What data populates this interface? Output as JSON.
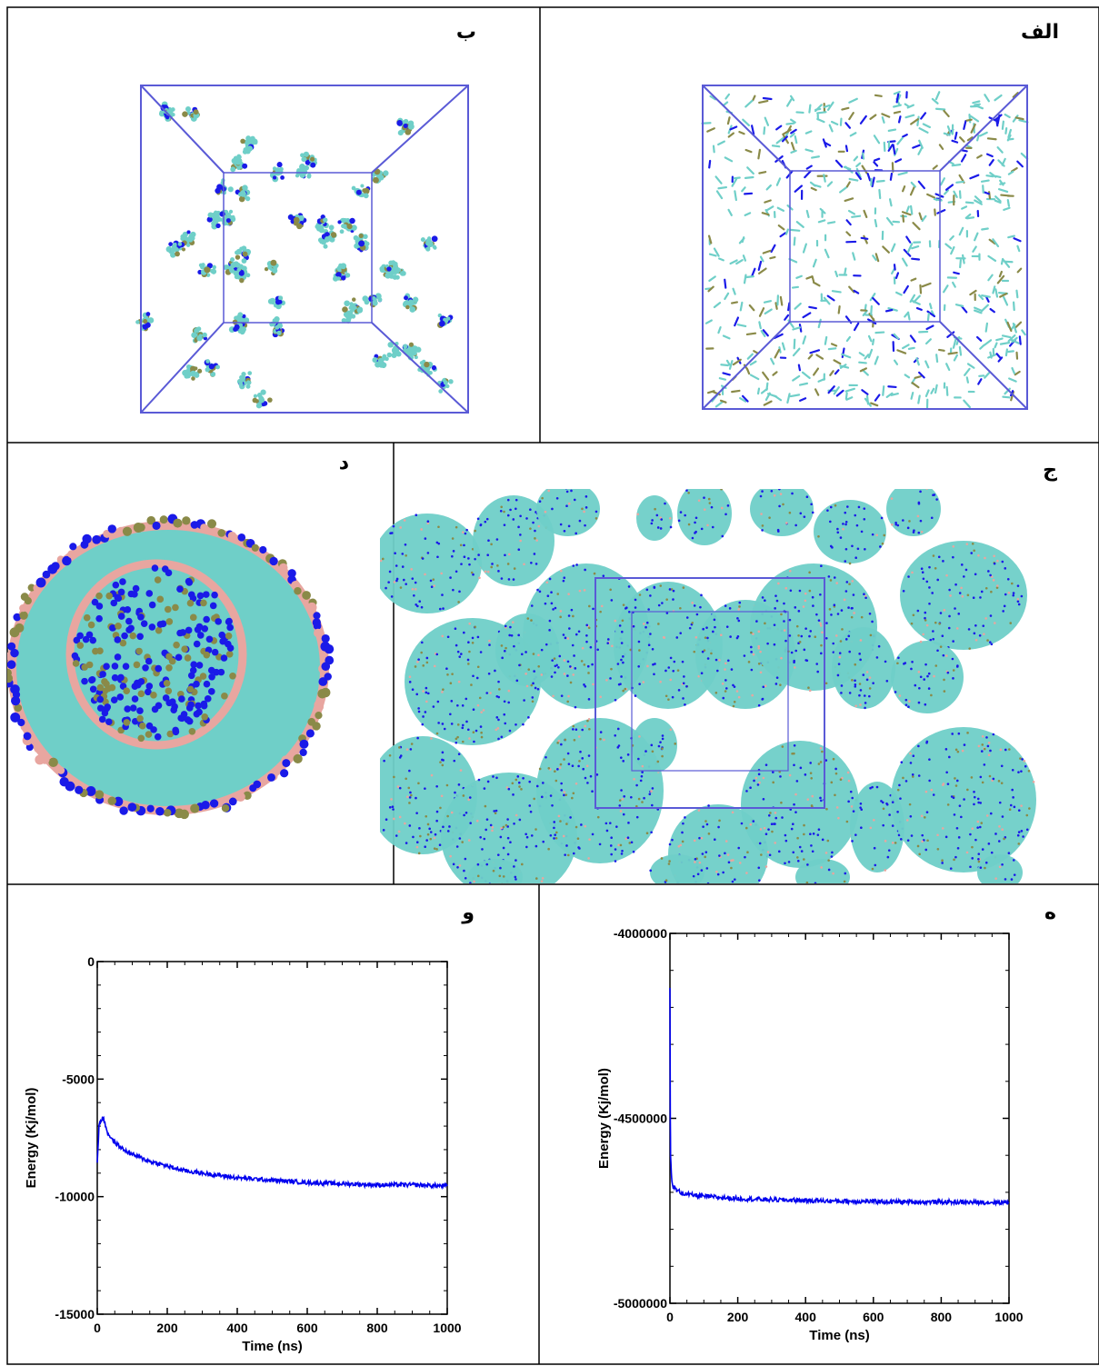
{
  "panel_labels": {
    "a": "الف",
    "b": "ب",
    "c": "ج",
    "d": "د",
    "e": "ه",
    "f": "و"
  },
  "colors": {
    "box": "#5a5ad6",
    "cyan": "#6fcfc8",
    "blue": "#1a1ae8",
    "olive": "#8a8a48",
    "pink": "#e8a6a0",
    "series": "#0000ee"
  },
  "chart_data": [
    {
      "panel": "e",
      "type": "line",
      "xlabel": "Time (ns)",
      "ylabel": "Energy (Kj/mol)",
      "xlim": [
        0,
        1000
      ],
      "ylim": [
        -5000000,
        -4000000
      ],
      "xticks": [
        0,
        200,
        400,
        600,
        800,
        1000
      ],
      "yticks": [
        -5000000,
        -4500000,
        -4000000
      ],
      "ytick_labels": [
        "-5000000",
        "-4500000",
        "-4000000"
      ],
      "series": [
        {
          "x": [
            0,
            1,
            2,
            4,
            6,
            10,
            20,
            40,
            60,
            100,
            150,
            200,
            300,
            400,
            500,
            600,
            700,
            800,
            900,
            1000
          ],
          "y": [
            -4150000,
            -4500000,
            -4600000,
            -4650000,
            -4670000,
            -4685000,
            -4695000,
            -4703000,
            -4707000,
            -4711000,
            -4714000,
            -4717000,
            -4720000,
            -4722000,
            -4724000,
            -4725000,
            -4726000,
            -4726000,
            -4727000,
            -4727000
          ]
        }
      ]
    },
    {
      "panel": "f",
      "type": "line",
      "xlabel": "Time (ns)",
      "ylabel": "Energy (Kj/mol)",
      "xlim": [
        0,
        1000
      ],
      "ylim": [
        -15000,
        0
      ],
      "xticks": [
        0,
        200,
        400,
        600,
        800,
        1000
      ],
      "yticks": [
        -15000,
        -10000,
        -5000,
        0
      ],
      "ytick_labels": [
        "-15000",
        "-10000",
        "-5000",
        "0"
      ],
      "series": [
        {
          "x": [
            0,
            5,
            10,
            15,
            20,
            30,
            50,
            75,
            100,
            150,
            200,
            250,
            300,
            400,
            500,
            600,
            700,
            800,
            900,
            1000
          ],
          "y": [
            -8500,
            -7000,
            -6800,
            -6600,
            -6800,
            -7300,
            -7700,
            -8000,
            -8200,
            -8500,
            -8700,
            -8900,
            -9000,
            -9200,
            -9300,
            -9400,
            -9450,
            -9500,
            -9500,
            -9550
          ]
        }
      ]
    }
  ]
}
